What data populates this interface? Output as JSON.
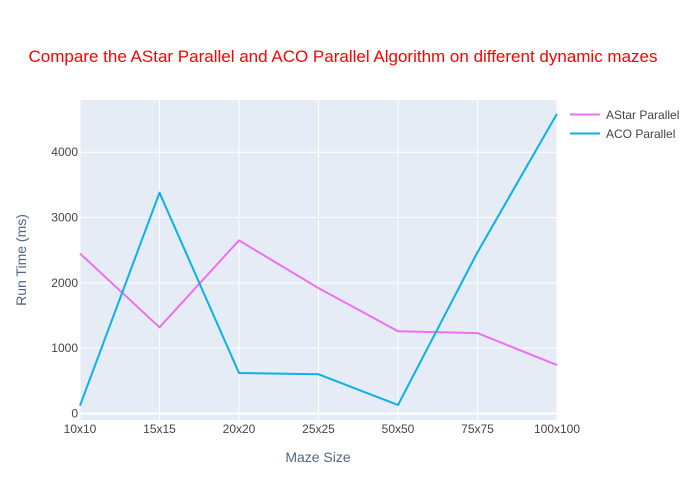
{
  "chart_data": {
    "type": "line",
    "title": "Compare the AStar Parallel and ACO Parallel Algorithm on different dynamic mazes",
    "title_color": "#ff0000",
    "xlabel": "Maze Size",
    "ylabel": "Run Time (ms)",
    "categories": [
      "10x10",
      "15x15",
      "20x20",
      "25x25",
      "50x50",
      "75x75",
      "100x100"
    ],
    "ylim": [
      -100,
      4800
    ],
    "yticks": [
      0,
      1000,
      2000,
      3000,
      4000
    ],
    "yticklabels": [
      "0",
      "1000",
      "2000",
      "3000",
      "4000"
    ],
    "grid": true,
    "legend_position": "top-right",
    "plot_background": "#e5ecf6",
    "series": [
      {
        "name": "AStar Parallel",
        "color": "#ef6ef1",
        "values": [
          2450,
          1320,
          2650,
          1920,
          1260,
          1230,
          740
        ]
      },
      {
        "name": "ACO Parallel",
        "color": "#0ab1e9",
        "values": [
          120,
          3380,
          620,
          600,
          130,
          2470,
          4590
        ]
      }
    ]
  }
}
